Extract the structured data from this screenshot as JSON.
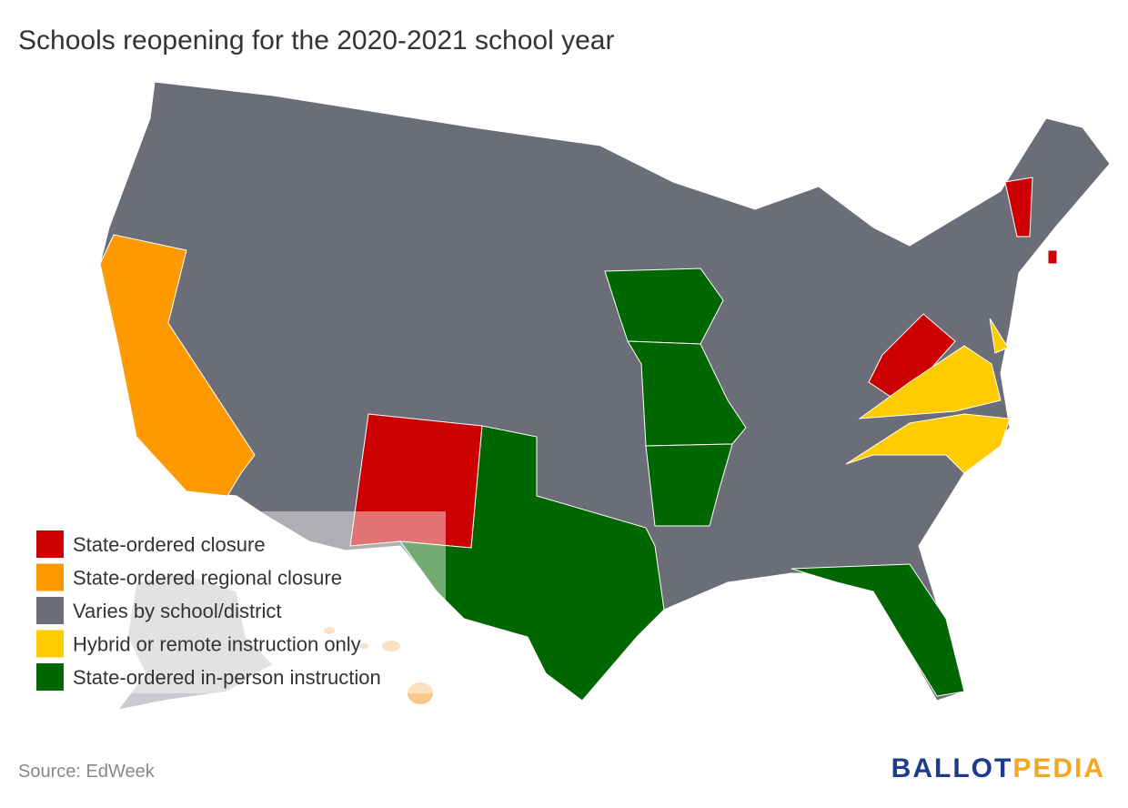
{
  "title": "Schools reopening for the 2020-2021 school year",
  "legend": {
    "items": [
      {
        "label": "State-ordered closure",
        "color": "#cc0000"
      },
      {
        "label": "State-ordered regional closure",
        "color": "#ff9900"
      },
      {
        "label": "Varies by school/district",
        "color": "#6b6d78"
      },
      {
        "label": "Hybrid or remote instruction only",
        "color": "#ffcc00"
      },
      {
        "label": "State-ordered in-person instruction",
        "color": "#006600"
      }
    ]
  },
  "source": "Source: EdWeek",
  "logo": {
    "part1": "BALLOT",
    "part2": "PEDIA"
  }
}
